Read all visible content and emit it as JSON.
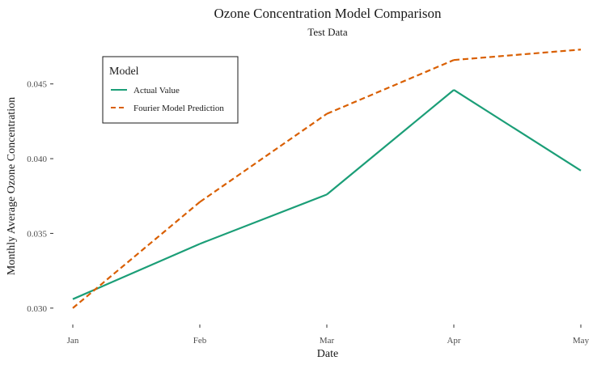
{
  "chart_data": {
    "type": "line",
    "title": "Ozone Concentration Model Comparison",
    "subtitle": "Test Data",
    "xlabel": "Date",
    "ylabel": "Monthly Average Ozone Concentration",
    "categories": [
      "Jan",
      "Feb",
      "Mar",
      "Apr",
      "May"
    ],
    "ylim": [
      0.0295,
      0.0478
    ],
    "yticks": [
      0.03,
      0.035,
      0.04,
      0.045
    ],
    "ytick_labels": [
      "0.030",
      "0.035",
      "0.040",
      "0.045"
    ],
    "grid": false,
    "legend": {
      "title": "Model",
      "position": "top-left"
    },
    "series": [
      {
        "name": "Actual Value",
        "color": "#1b9e77",
        "dash": "solid",
        "values": [
          0.0306,
          0.0343,
          0.0376,
          0.0446,
          0.0392
        ]
      },
      {
        "name": "Fourier Model Prediction",
        "color": "#d95f02",
        "dash": "dashed",
        "values": [
          0.03,
          0.0371,
          0.043,
          0.0466,
          0.0473
        ]
      }
    ]
  }
}
